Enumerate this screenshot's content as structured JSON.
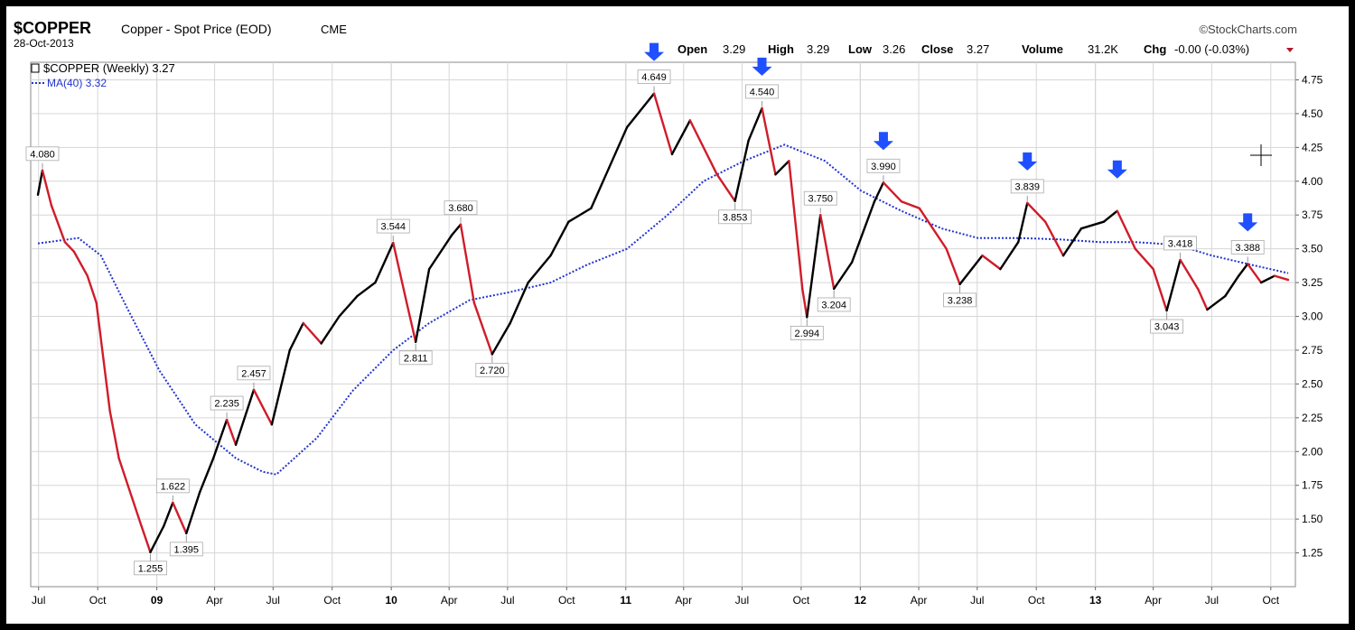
{
  "header": {
    "symbol": "$COPPER",
    "description": "Copper - Spot Price (EOD)",
    "exchange": "CME",
    "date": "28-Oct-2013",
    "source": "©StockCharts.com",
    "open_label": "Open",
    "open": "3.29",
    "high_label": "High",
    "high": "3.29",
    "low_label": "Low",
    "low": "3.26",
    "close_label": "Close",
    "close": "3.27",
    "volume_label": "Volume",
    "volume": "31.2K",
    "chg_label": "Chg",
    "chg": "-0.00 (-0.03%)"
  },
  "legend": {
    "series": "$COPPER (Weekly) 3.27",
    "ma": "MA(40) 3.32"
  },
  "colors": {
    "up": "#000000",
    "down": "#d01c2a",
    "ma": "#2233cc",
    "arrow": "#1f4fff",
    "grid": "#d6d6d6"
  },
  "chart_data": {
    "type": "line",
    "title": "$COPPER Copper - Spot Price (EOD)",
    "xlabel": "",
    "ylabel": "",
    "ylim": [
      1.0,
      4.88
    ],
    "y_ticks": [
      "4.75",
      "4.50",
      "4.25",
      "4.00",
      "3.75",
      "3.50",
      "3.25",
      "3.00",
      "2.75",
      "2.50",
      "2.25",
      "2.00",
      "1.75",
      "1.50",
      "1.25"
    ],
    "x_range": [
      "2008-06-30",
      "2013-10-28"
    ],
    "x_ticks": [
      {
        "date": "2008-07-01",
        "label": "Jul",
        "bold": false
      },
      {
        "date": "2008-10-01",
        "label": "Oct",
        "bold": false
      },
      {
        "date": "2009-01-01",
        "label": "09",
        "bold": true
      },
      {
        "date": "2009-04-01",
        "label": "Apr",
        "bold": false
      },
      {
        "date": "2009-07-01",
        "label": "Jul",
        "bold": false
      },
      {
        "date": "2009-10-01",
        "label": "Oct",
        "bold": false
      },
      {
        "date": "2010-01-01",
        "label": "10",
        "bold": true
      },
      {
        "date": "2010-04-01",
        "label": "Apr",
        "bold": false
      },
      {
        "date": "2010-07-01",
        "label": "Jul",
        "bold": false
      },
      {
        "date": "2010-10-01",
        "label": "Oct",
        "bold": false
      },
      {
        "date": "2011-01-01",
        "label": "11",
        "bold": true
      },
      {
        "date": "2011-04-01",
        "label": "Apr",
        "bold": false
      },
      {
        "date": "2011-07-01",
        "label": "Jul",
        "bold": false
      },
      {
        "date": "2011-10-01",
        "label": "Oct",
        "bold": false
      },
      {
        "date": "2012-01-01",
        "label": "12",
        "bold": true
      },
      {
        "date": "2012-04-01",
        "label": "Apr",
        "bold": false
      },
      {
        "date": "2012-07-01",
        "label": "Jul",
        "bold": false
      },
      {
        "date": "2012-10-01",
        "label": "Oct",
        "bold": false
      },
      {
        "date": "2013-01-01",
        "label": "13",
        "bold": true
      },
      {
        "date": "2013-04-01",
        "label": "Apr",
        "bold": false
      },
      {
        "date": "2013-07-01",
        "label": "Jul",
        "bold": false
      },
      {
        "date": "2013-10-01",
        "label": "Oct",
        "bold": false
      }
    ],
    "price_path": [
      {
        "x": "2008-06-30",
        "y": 3.9
      },
      {
        "x": "2008-07-07",
        "y": 4.08
      },
      {
        "x": "2008-07-21",
        "y": 3.82
      },
      {
        "x": "2008-08-11",
        "y": 3.55
      },
      {
        "x": "2008-08-25",
        "y": 3.48
      },
      {
        "x": "2008-09-15",
        "y": 3.3
      },
      {
        "x": "2008-09-29",
        "y": 3.1
      },
      {
        "x": "2008-10-20",
        "y": 2.3
      },
      {
        "x": "2008-11-03",
        "y": 1.95
      },
      {
        "x": "2008-11-17",
        "y": 1.75
      },
      {
        "x": "2008-12-08",
        "y": 1.45
      },
      {
        "x": "2008-12-22",
        "y": 1.255
      },
      {
        "x": "2009-01-12",
        "y": 1.45
      },
      {
        "x": "2009-01-26",
        "y": 1.622
      },
      {
        "x": "2009-02-16",
        "y": 1.395
      },
      {
        "x": "2009-03-09",
        "y": 1.7
      },
      {
        "x": "2009-03-30",
        "y": 1.95
      },
      {
        "x": "2009-04-20",
        "y": 2.235
      },
      {
        "x": "2009-05-04",
        "y": 2.05
      },
      {
        "x": "2009-06-01",
        "y": 2.457
      },
      {
        "x": "2009-06-29",
        "y": 2.2
      },
      {
        "x": "2009-07-27",
        "y": 2.75
      },
      {
        "x": "2009-08-17",
        "y": 2.95
      },
      {
        "x": "2009-09-14",
        "y": 2.8
      },
      {
        "x": "2009-10-12",
        "y": 3.0
      },
      {
        "x": "2009-11-09",
        "y": 3.15
      },
      {
        "x": "2009-12-07",
        "y": 3.25
      },
      {
        "x": "2010-01-04",
        "y": 3.544
      },
      {
        "x": "2010-01-25",
        "y": 3.1
      },
      {
        "x": "2010-02-08",
        "y": 2.811
      },
      {
        "x": "2010-03-01",
        "y": 3.35
      },
      {
        "x": "2010-04-05",
        "y": 3.6
      },
      {
        "x": "2010-04-19",
        "y": 3.68
      },
      {
        "x": "2010-05-10",
        "y": 3.1
      },
      {
        "x": "2010-06-07",
        "y": 2.72
      },
      {
        "x": "2010-07-05",
        "y": 2.95
      },
      {
        "x": "2010-08-02",
        "y": 3.25
      },
      {
        "x": "2010-09-06",
        "y": 3.45
      },
      {
        "x": "2010-10-04",
        "y": 3.7
      },
      {
        "x": "2010-11-08",
        "y": 3.8
      },
      {
        "x": "2010-12-06",
        "y": 4.1
      },
      {
        "x": "2011-01-03",
        "y": 4.4
      },
      {
        "x": "2011-02-14",
        "y": 4.649
      },
      {
        "x": "2011-03-14",
        "y": 4.2
      },
      {
        "x": "2011-04-11",
        "y": 4.45
      },
      {
        "x": "2011-05-23",
        "y": 4.05
      },
      {
        "x": "2011-06-20",
        "y": 3.853
      },
      {
        "x": "2011-07-11",
        "y": 4.3
      },
      {
        "x": "2011-08-01",
        "y": 4.54
      },
      {
        "x": "2011-08-22",
        "y": 4.05
      },
      {
        "x": "2011-09-12",
        "y": 4.15
      },
      {
        "x": "2011-10-03",
        "y": 3.2
      },
      {
        "x": "2011-10-10",
        "y": 2.994
      },
      {
        "x": "2011-10-31",
        "y": 3.75
      },
      {
        "x": "2011-11-21",
        "y": 3.204
      },
      {
        "x": "2011-12-19",
        "y": 3.4
      },
      {
        "x": "2012-01-23",
        "y": 3.85
      },
      {
        "x": "2012-02-06",
        "y": 3.99
      },
      {
        "x": "2012-03-05",
        "y": 3.85
      },
      {
        "x": "2012-04-02",
        "y": 3.8
      },
      {
        "x": "2012-05-14",
        "y": 3.5
      },
      {
        "x": "2012-06-04",
        "y": 3.238
      },
      {
        "x": "2012-07-09",
        "y": 3.45
      },
      {
        "x": "2012-08-06",
        "y": 3.35
      },
      {
        "x": "2012-09-03",
        "y": 3.55
      },
      {
        "x": "2012-09-17",
        "y": 3.839
      },
      {
        "x": "2012-10-15",
        "y": 3.7
      },
      {
        "x": "2012-11-12",
        "y": 3.45
      },
      {
        "x": "2012-12-10",
        "y": 3.65
      },
      {
        "x": "2013-01-14",
        "y": 3.7
      },
      {
        "x": "2013-02-04",
        "y": 3.78
      },
      {
        "x": "2013-03-04",
        "y": 3.5
      },
      {
        "x": "2013-04-01",
        "y": 3.35
      },
      {
        "x": "2013-04-22",
        "y": 3.043
      },
      {
        "x": "2013-05-13",
        "y": 3.418
      },
      {
        "x": "2013-06-10",
        "y": 3.2
      },
      {
        "x": "2013-06-24",
        "y": 3.05
      },
      {
        "x": "2013-07-22",
        "y": 3.15
      },
      {
        "x": "2013-08-12",
        "y": 3.3
      },
      {
        "x": "2013-08-26",
        "y": 3.388
      },
      {
        "x": "2013-09-16",
        "y": 3.25
      },
      {
        "x": "2013-10-07",
        "y": 3.3
      },
      {
        "x": "2013-10-28",
        "y": 3.27
      }
    ],
    "ma40": [
      {
        "x": "2008-06-30",
        "y": 3.54
      },
      {
        "x": "2008-09-01",
        "y": 3.58
      },
      {
        "x": "2008-10-06",
        "y": 3.45
      },
      {
        "x": "2008-11-17",
        "y": 3.05
      },
      {
        "x": "2009-01-05",
        "y": 2.6
      },
      {
        "x": "2009-03-02",
        "y": 2.2
      },
      {
        "x": "2009-05-04",
        "y": 1.95
      },
      {
        "x": "2009-06-15",
        "y": 1.85
      },
      {
        "x": "2009-07-06",
        "y": 1.83
      },
      {
        "x": "2009-09-07",
        "y": 2.1
      },
      {
        "x": "2009-11-02",
        "y": 2.45
      },
      {
        "x": "2010-01-04",
        "y": 2.75
      },
      {
        "x": "2010-03-01",
        "y": 2.95
      },
      {
        "x": "2010-05-03",
        "y": 3.12
      },
      {
        "x": "2010-07-05",
        "y": 3.18
      },
      {
        "x": "2010-09-06",
        "y": 3.25
      },
      {
        "x": "2010-11-01",
        "y": 3.38
      },
      {
        "x": "2011-01-03",
        "y": 3.5
      },
      {
        "x": "2011-03-07",
        "y": 3.75
      },
      {
        "x": "2011-05-02",
        "y": 4.0
      },
      {
        "x": "2011-07-04",
        "y": 4.15
      },
      {
        "x": "2011-09-05",
        "y": 4.27
      },
      {
        "x": "2011-11-07",
        "y": 4.15
      },
      {
        "x": "2012-01-02",
        "y": 3.93
      },
      {
        "x": "2012-03-05",
        "y": 3.78
      },
      {
        "x": "2012-05-07",
        "y": 3.65
      },
      {
        "x": "2012-07-02",
        "y": 3.58
      },
      {
        "x": "2012-09-03",
        "y": 3.58
      },
      {
        "x": "2012-11-05",
        "y": 3.57
      },
      {
        "x": "2013-01-07",
        "y": 3.55
      },
      {
        "x": "2013-03-04",
        "y": 3.55
      },
      {
        "x": "2013-05-06",
        "y": 3.53
      },
      {
        "x": "2013-07-01",
        "y": 3.45
      },
      {
        "x": "2013-09-02",
        "y": 3.38
      },
      {
        "x": "2013-10-28",
        "y": 3.32
      }
    ],
    "annotations": [
      {
        "x": "2008-07-07",
        "y": 4.08,
        "label": "4.080",
        "position": "above"
      },
      {
        "x": "2008-12-22",
        "y": 1.255,
        "label": "1.255",
        "position": "below"
      },
      {
        "x": "2009-01-26",
        "y": 1.622,
        "label": "1.622",
        "position": "above"
      },
      {
        "x": "2009-02-16",
        "y": 1.395,
        "label": "1.395",
        "position": "below"
      },
      {
        "x": "2009-04-20",
        "y": 2.235,
        "label": "2.235",
        "position": "above"
      },
      {
        "x": "2009-06-01",
        "y": 2.457,
        "label": "2.457",
        "position": "above"
      },
      {
        "x": "2010-01-04",
        "y": 3.544,
        "label": "3.544",
        "position": "above"
      },
      {
        "x": "2010-02-08",
        "y": 2.811,
        "label": "2.811",
        "position": "below"
      },
      {
        "x": "2010-04-19",
        "y": 3.68,
        "label": "3.680",
        "position": "above"
      },
      {
        "x": "2010-06-07",
        "y": 2.72,
        "label": "2.720",
        "position": "below"
      },
      {
        "x": "2011-02-14",
        "y": 4.649,
        "label": "4.649",
        "position": "above"
      },
      {
        "x": "2011-08-01",
        "y": 4.54,
        "label": "4.540",
        "position": "above"
      },
      {
        "x": "2011-06-20",
        "y": 3.853,
        "label": "3.853",
        "position": "below"
      },
      {
        "x": "2011-10-31",
        "y": 3.75,
        "label": "3.750",
        "position": "above"
      },
      {
        "x": "2011-10-10",
        "y": 2.994,
        "label": "2.994",
        "position": "below"
      },
      {
        "x": "2011-11-21",
        "y": 3.204,
        "label": "3.204",
        "position": "below"
      },
      {
        "x": "2012-02-06",
        "y": 3.99,
        "label": "3.990",
        "position": "above"
      },
      {
        "x": "2012-06-04",
        "y": 3.238,
        "label": "3.238",
        "position": "below"
      },
      {
        "x": "2012-09-17",
        "y": 3.839,
        "label": "3.839",
        "position": "above"
      },
      {
        "x": "2013-04-22",
        "y": 3.043,
        "label": "3.043",
        "position": "below"
      },
      {
        "x": "2013-05-13",
        "y": 3.418,
        "label": "3.418",
        "position": "above"
      },
      {
        "x": "2013-08-26",
        "y": 3.388,
        "label": "3.388",
        "position": "above"
      }
    ],
    "arrows": [
      {
        "x": "2011-02-14",
        "y": 4.649
      },
      {
        "x": "2011-08-01",
        "y": 4.54
      },
      {
        "x": "2012-02-06",
        "y": 3.99
      },
      {
        "x": "2012-09-17",
        "y": 3.839
      },
      {
        "x": "2013-02-04",
        "y": 3.78
      },
      {
        "x": "2013-08-26",
        "y": 3.388
      }
    ],
    "grid": true,
    "legend_position": "top-left"
  }
}
